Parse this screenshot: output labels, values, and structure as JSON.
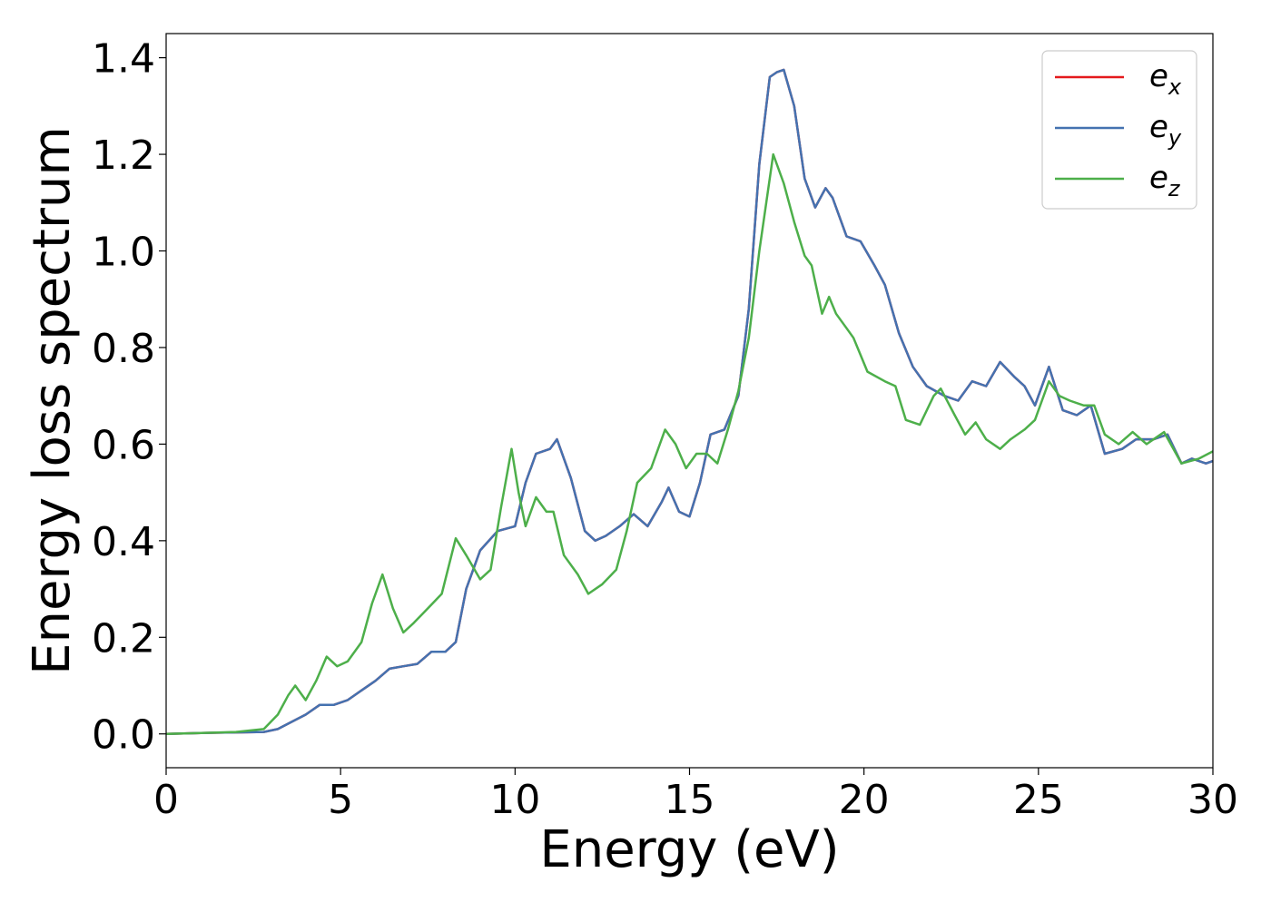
{
  "chart_data": {
    "type": "line",
    "title": "",
    "xlabel": "Energy (eV)",
    "ylabel": "Energy loss spectrum",
    "xlim": [
      0,
      30
    ],
    "ylim": [
      -0.07,
      1.45
    ],
    "xticks": [
      0,
      5,
      10,
      15,
      20,
      25,
      30
    ],
    "xtick_labels": [
      "0",
      "5",
      "10",
      "15",
      "20",
      "25",
      "30"
    ],
    "yticks": [
      0.0,
      0.2,
      0.4,
      0.6,
      0.8,
      1.0,
      1.2,
      1.4
    ],
    "ytick_labels": [
      "0.0",
      "0.2",
      "0.4",
      "0.6",
      "0.8",
      "1.0",
      "1.2",
      "1.4"
    ],
    "grid": false,
    "legend_position": "top-right",
    "series": [
      {
        "name": "e",
        "subscript": "x",
        "color": "#e41a1c",
        "points": [
          [
            0,
            0
          ],
          [
            1,
            0.002
          ],
          [
            2,
            0.003
          ],
          [
            2.8,
            0.004
          ],
          [
            3.2,
            0.01
          ],
          [
            3.6,
            0.025
          ],
          [
            4.0,
            0.04
          ],
          [
            4.4,
            0.06
          ],
          [
            4.8,
            0.06
          ],
          [
            5.2,
            0.07
          ],
          [
            5.6,
            0.09
          ],
          [
            6.0,
            0.11
          ],
          [
            6.4,
            0.135
          ],
          [
            6.8,
            0.14
          ],
          [
            7.2,
            0.145
          ],
          [
            7.6,
            0.17
          ],
          [
            8.0,
            0.17
          ],
          [
            8.3,
            0.19
          ],
          [
            8.6,
            0.3
          ],
          [
            9.0,
            0.38
          ],
          [
            9.5,
            0.42
          ],
          [
            10.0,
            0.43
          ],
          [
            10.3,
            0.52
          ],
          [
            10.6,
            0.58
          ],
          [
            11.0,
            0.59
          ],
          [
            11.2,
            0.61
          ],
          [
            11.6,
            0.53
          ],
          [
            12.0,
            0.42
          ],
          [
            12.3,
            0.4
          ],
          [
            12.6,
            0.41
          ],
          [
            13.0,
            0.43
          ],
          [
            13.4,
            0.455
          ],
          [
            13.8,
            0.43
          ],
          [
            14.2,
            0.48
          ],
          [
            14.4,
            0.51
          ],
          [
            14.7,
            0.46
          ],
          [
            15.0,
            0.45
          ],
          [
            15.3,
            0.52
          ],
          [
            15.6,
            0.62
          ],
          [
            16.0,
            0.63
          ],
          [
            16.4,
            0.7
          ],
          [
            16.7,
            0.88
          ],
          [
            17.0,
            1.18
          ],
          [
            17.3,
            1.36
          ],
          [
            17.5,
            1.37
          ],
          [
            17.7,
            1.375
          ],
          [
            18.0,
            1.3
          ],
          [
            18.3,
            1.15
          ],
          [
            18.6,
            1.09
          ],
          [
            18.9,
            1.13
          ],
          [
            19.1,
            1.11
          ],
          [
            19.5,
            1.03
          ],
          [
            19.9,
            1.02
          ],
          [
            20.3,
            0.97
          ],
          [
            20.6,
            0.93
          ],
          [
            21.0,
            0.83
          ],
          [
            21.4,
            0.76
          ],
          [
            21.8,
            0.72
          ],
          [
            22.3,
            0.7
          ],
          [
            22.7,
            0.69
          ],
          [
            23.1,
            0.73
          ],
          [
            23.5,
            0.72
          ],
          [
            23.9,
            0.77
          ],
          [
            24.3,
            0.74
          ],
          [
            24.6,
            0.72
          ],
          [
            24.9,
            0.68
          ],
          [
            25.3,
            0.76
          ],
          [
            25.7,
            0.67
          ],
          [
            26.1,
            0.66
          ],
          [
            26.5,
            0.68
          ],
          [
            26.9,
            0.58
          ],
          [
            27.4,
            0.59
          ],
          [
            27.8,
            0.61
          ],
          [
            28.3,
            0.61
          ],
          [
            28.7,
            0.62
          ],
          [
            29.1,
            0.56
          ],
          [
            29.4,
            0.57
          ],
          [
            29.8,
            0.56
          ],
          [
            30,
            0.565
          ]
        ]
      },
      {
        "name": "e",
        "subscript": "y",
        "color": "#4472b0",
        "points": [
          [
            0,
            0
          ],
          [
            1,
            0.002
          ],
          [
            2,
            0.003
          ],
          [
            2.8,
            0.004
          ],
          [
            3.2,
            0.01
          ],
          [
            3.6,
            0.025
          ],
          [
            4.0,
            0.04
          ],
          [
            4.4,
            0.06
          ],
          [
            4.8,
            0.06
          ],
          [
            5.2,
            0.07
          ],
          [
            5.6,
            0.09
          ],
          [
            6.0,
            0.11
          ],
          [
            6.4,
            0.135
          ],
          [
            6.8,
            0.14
          ],
          [
            7.2,
            0.145
          ],
          [
            7.6,
            0.17
          ],
          [
            8.0,
            0.17
          ],
          [
            8.3,
            0.19
          ],
          [
            8.6,
            0.3
          ],
          [
            9.0,
            0.38
          ],
          [
            9.5,
            0.42
          ],
          [
            10.0,
            0.43
          ],
          [
            10.3,
            0.52
          ],
          [
            10.6,
            0.58
          ],
          [
            11.0,
            0.59
          ],
          [
            11.2,
            0.61
          ],
          [
            11.6,
            0.53
          ],
          [
            12.0,
            0.42
          ],
          [
            12.3,
            0.4
          ],
          [
            12.6,
            0.41
          ],
          [
            13.0,
            0.43
          ],
          [
            13.4,
            0.455
          ],
          [
            13.8,
            0.43
          ],
          [
            14.2,
            0.48
          ],
          [
            14.4,
            0.51
          ],
          [
            14.7,
            0.46
          ],
          [
            15.0,
            0.45
          ],
          [
            15.3,
            0.52
          ],
          [
            15.6,
            0.62
          ],
          [
            16.0,
            0.63
          ],
          [
            16.4,
            0.7
          ],
          [
            16.7,
            0.88
          ],
          [
            17.0,
            1.18
          ],
          [
            17.3,
            1.36
          ],
          [
            17.5,
            1.37
          ],
          [
            17.7,
            1.375
          ],
          [
            18.0,
            1.3
          ],
          [
            18.3,
            1.15
          ],
          [
            18.6,
            1.09
          ],
          [
            18.9,
            1.13
          ],
          [
            19.1,
            1.11
          ],
          [
            19.5,
            1.03
          ],
          [
            19.9,
            1.02
          ],
          [
            20.3,
            0.97
          ],
          [
            20.6,
            0.93
          ],
          [
            21.0,
            0.83
          ],
          [
            21.4,
            0.76
          ],
          [
            21.8,
            0.72
          ],
          [
            22.3,
            0.7
          ],
          [
            22.7,
            0.69
          ],
          [
            23.1,
            0.73
          ],
          [
            23.5,
            0.72
          ],
          [
            23.9,
            0.77
          ],
          [
            24.3,
            0.74
          ],
          [
            24.6,
            0.72
          ],
          [
            24.9,
            0.68
          ],
          [
            25.3,
            0.76
          ],
          [
            25.7,
            0.67
          ],
          [
            26.1,
            0.66
          ],
          [
            26.5,
            0.68
          ],
          [
            26.9,
            0.58
          ],
          [
            27.4,
            0.59
          ],
          [
            27.8,
            0.61
          ],
          [
            28.3,
            0.61
          ],
          [
            28.7,
            0.62
          ],
          [
            29.1,
            0.56
          ],
          [
            29.4,
            0.57
          ],
          [
            29.8,
            0.56
          ],
          [
            30,
            0.565
          ]
        ]
      },
      {
        "name": "e",
        "subscript": "z",
        "color": "#4daf4a",
        "points": [
          [
            0,
            0
          ],
          [
            1,
            0.002
          ],
          [
            2,
            0.004
          ],
          [
            2.8,
            0.01
          ],
          [
            3.2,
            0.04
          ],
          [
            3.5,
            0.08
          ],
          [
            3.7,
            0.1
          ],
          [
            4.0,
            0.07
          ],
          [
            4.3,
            0.11
          ],
          [
            4.6,
            0.16
          ],
          [
            4.9,
            0.14
          ],
          [
            5.2,
            0.15
          ],
          [
            5.6,
            0.19
          ],
          [
            5.9,
            0.27
          ],
          [
            6.2,
            0.33
          ],
          [
            6.5,
            0.26
          ],
          [
            6.8,
            0.21
          ],
          [
            7.1,
            0.23
          ],
          [
            7.5,
            0.26
          ],
          [
            7.9,
            0.29
          ],
          [
            8.3,
            0.405
          ],
          [
            8.6,
            0.37
          ],
          [
            9.0,
            0.32
          ],
          [
            9.3,
            0.34
          ],
          [
            9.6,
            0.47
          ],
          [
            9.9,
            0.59
          ],
          [
            10.1,
            0.5
          ],
          [
            10.3,
            0.43
          ],
          [
            10.6,
            0.49
          ],
          [
            10.9,
            0.46
          ],
          [
            11.1,
            0.46
          ],
          [
            11.4,
            0.37
          ],
          [
            11.8,
            0.33
          ],
          [
            12.1,
            0.29
          ],
          [
            12.5,
            0.31
          ],
          [
            12.9,
            0.34
          ],
          [
            13.2,
            0.42
          ],
          [
            13.5,
            0.52
          ],
          [
            13.9,
            0.55
          ],
          [
            14.3,
            0.63
          ],
          [
            14.6,
            0.6
          ],
          [
            14.9,
            0.55
          ],
          [
            15.2,
            0.58
          ],
          [
            15.5,
            0.58
          ],
          [
            15.8,
            0.56
          ],
          [
            16.1,
            0.63
          ],
          [
            16.4,
            0.71
          ],
          [
            16.7,
            0.82
          ],
          [
            17.0,
            1.0
          ],
          [
            17.4,
            1.2
          ],
          [
            17.7,
            1.14
          ],
          [
            18.0,
            1.06
          ],
          [
            18.3,
            0.99
          ],
          [
            18.5,
            0.97
          ],
          [
            18.8,
            0.87
          ],
          [
            19.0,
            0.905
          ],
          [
            19.2,
            0.87
          ],
          [
            19.5,
            0.84
          ],
          [
            19.7,
            0.82
          ],
          [
            20.1,
            0.75
          ],
          [
            20.6,
            0.73
          ],
          [
            20.9,
            0.72
          ],
          [
            21.2,
            0.65
          ],
          [
            21.6,
            0.64
          ],
          [
            22.0,
            0.7
          ],
          [
            22.2,
            0.715
          ],
          [
            22.6,
            0.66
          ],
          [
            22.9,
            0.62
          ],
          [
            23.2,
            0.645
          ],
          [
            23.5,
            0.61
          ],
          [
            23.9,
            0.59
          ],
          [
            24.2,
            0.61
          ],
          [
            24.6,
            0.63
          ],
          [
            24.9,
            0.65
          ],
          [
            25.3,
            0.73
          ],
          [
            25.6,
            0.7
          ],
          [
            25.9,
            0.69
          ],
          [
            26.3,
            0.68
          ],
          [
            26.6,
            0.68
          ],
          [
            26.9,
            0.62
          ],
          [
            27.3,
            0.6
          ],
          [
            27.7,
            0.625
          ],
          [
            28.1,
            0.6
          ],
          [
            28.6,
            0.625
          ],
          [
            29.1,
            0.56
          ],
          [
            29.6,
            0.57
          ],
          [
            30,
            0.585
          ]
        ]
      }
    ]
  }
}
